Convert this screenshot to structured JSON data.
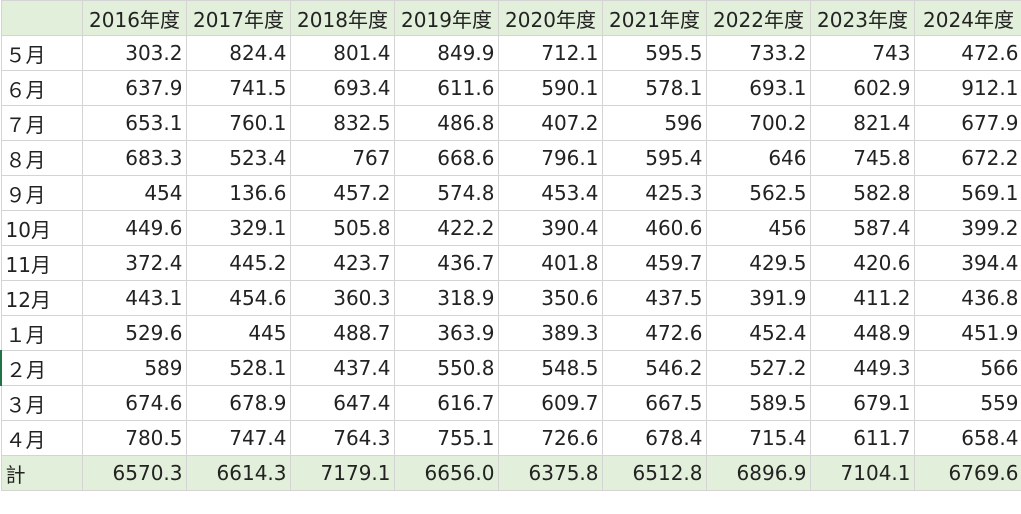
{
  "headers": [
    "",
    "2016年度",
    "2017年度",
    "2018年度",
    "2019年度",
    "2020年度",
    "2021年度",
    "2022年度",
    "2023年度",
    "2024年度"
  ],
  "rows": [
    {
      "label": "５月",
      "values": [
        "303.2",
        "824.4",
        "801.4",
        "849.9",
        "712.1",
        "595.5",
        "733.2",
        "743",
        "472.6"
      ]
    },
    {
      "label": "６月",
      "values": [
        "637.9",
        "741.5",
        "693.4",
        "611.6",
        "590.1",
        "578.1",
        "693.1",
        "602.9",
        "912.1"
      ]
    },
    {
      "label": "７月",
      "values": [
        "653.1",
        "760.1",
        "832.5",
        "486.8",
        "407.2",
        "596",
        "700.2",
        "821.4",
        "677.9"
      ]
    },
    {
      "label": "８月",
      "values": [
        "683.3",
        "523.4",
        "767",
        "668.6",
        "796.1",
        "595.4",
        "646",
        "745.8",
        "672.2"
      ]
    },
    {
      "label": "９月",
      "values": [
        "454",
        "136.6",
        "457.2",
        "574.8",
        "453.4",
        "425.3",
        "562.5",
        "582.8",
        "569.1"
      ]
    },
    {
      "label": "10月",
      "values": [
        "449.6",
        "329.1",
        "505.8",
        "422.2",
        "390.4",
        "460.6",
        "456",
        "587.4",
        "399.2"
      ]
    },
    {
      "label": "11月",
      "values": [
        "372.4",
        "445.2",
        "423.7",
        "436.7",
        "401.8",
        "459.7",
        "429.5",
        "420.6",
        "394.4"
      ]
    },
    {
      "label": "12月",
      "values": [
        "443.1",
        "454.6",
        "360.3",
        "318.9",
        "350.6",
        "437.5",
        "391.9",
        "411.2",
        "436.8"
      ]
    },
    {
      "label": "１月",
      "values": [
        "529.6",
        "445",
        "488.7",
        "363.9",
        "389.3",
        "472.6",
        "452.4",
        "448.9",
        "451.9"
      ]
    },
    {
      "label": "２月",
      "values": [
        "589",
        "528.1",
        "437.4",
        "550.8",
        "548.5",
        "546.2",
        "527.2",
        "449.3",
        "566"
      ]
    },
    {
      "label": "３月",
      "values": [
        "674.6",
        "678.9",
        "647.4",
        "616.7",
        "609.7",
        "667.5",
        "589.5",
        "679.1",
        "559"
      ]
    },
    {
      "label": "４月",
      "values": [
        "780.5",
        "747.4",
        "764.3",
        "755.1",
        "726.6",
        "678.4",
        "715.4",
        "611.7",
        "658.4"
      ]
    }
  ],
  "total": {
    "label": "計",
    "values": [
      "6570.3",
      "6614.3",
      "7179.1",
      "6656.0",
      "6375.8",
      "6512.8",
      "6896.9",
      "7104.1",
      "6769.6"
    ]
  }
}
